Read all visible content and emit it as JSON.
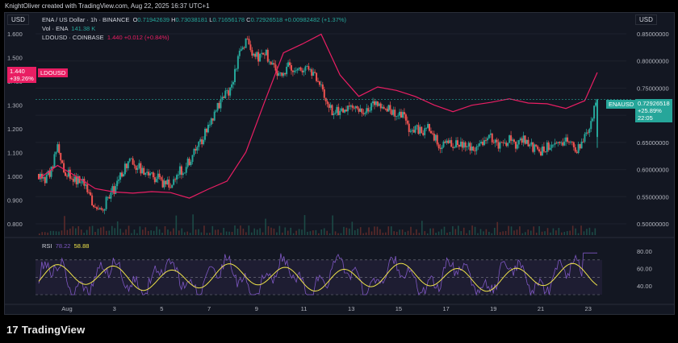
{
  "header": {
    "created_by": "KnightOliver created with TradingView.com, Aug 22, 2025 16:37 UTC+1"
  },
  "left_scale_label": "USD",
  "right_scale_label": "USD",
  "legend": {
    "main_title": "ENA / US Dollar · 1h · BINANCE",
    "ohlc": [
      {
        "k": "O",
        "v": "0.71942639"
      },
      {
        "k": "H",
        "v": "0.73038181"
      },
      {
        "k": "L",
        "v": "0.71656178"
      },
      {
        "k": "C",
        "v": "0.72926518"
      }
    ],
    "change": "+0.00982482 (+1.37%)",
    "vol_label": "Vol · ENA",
    "vol_value": "141.38 K",
    "compare_label": "LDOUSD · COINBASE",
    "compare_value": "1.440",
    "compare_change": "+0.012 (+0.84%)"
  },
  "badges": {
    "ldo_price": "1.440",
    "ldo_pct": "+39.26%",
    "ldo_name": "LDOUSD",
    "ena_name": "ENAUSD",
    "ena_price": "0.72926518",
    "ena_pct": "+25.89%",
    "ena_timer": "22:05"
  },
  "rsi": {
    "label": "RSI",
    "v1": "78.22",
    "v2": "58.88",
    "ticks": [
      "80.00",
      "60.00",
      "40.00"
    ]
  },
  "brand": "TradingView",
  "colors": {
    "bg": "#131722",
    "up": "#26a69a",
    "down": "#ef5350",
    "compare": "#e91e63",
    "rsi": "#7e57c2",
    "rsi_ma": "#f0e44a"
  },
  "chart_data": {
    "type": "line",
    "title": "ENA / US Dollar · 1h · BINANCE",
    "x_labels": [
      "Aug",
      "3",
      "5",
      "7",
      "9",
      "11",
      "13",
      "15",
      "17",
      "19",
      "21",
      "23"
    ],
    "left_axis": {
      "label": "USD",
      "ticks": [
        "1.600",
        "1.500",
        "1.400",
        "1.300",
        "1.200",
        "1.100",
        "1.000",
        "0.900",
        "0.800"
      ]
    },
    "right_axis": {
      "label": "USD",
      "ticks": [
        "0.85000000",
        "0.80000000",
        "0.75000000",
        "0.70000000",
        "0.65000000",
        "0.60000000",
        "0.55000000",
        "0.50000000"
      ],
      "ylim": [
        0.49,
        0.87
      ]
    },
    "series": [
      {
        "name": "ENAUSD",
        "axis": "right",
        "x": [
          0,
          1,
          2,
          3,
          4,
          5,
          6,
          7,
          8,
          9,
          10,
          11,
          12,
          13,
          14,
          15,
          16,
          17,
          18,
          19,
          20,
          21,
          22,
          23,
          24,
          25,
          26,
          27,
          28,
          29,
          30,
          31,
          32,
          33,
          34,
          35,
          36,
          37,
          38,
          39,
          40,
          41,
          42,
          43,
          44,
          45,
          46,
          47,
          48,
          49,
          50,
          51,
          52,
          53,
          54,
          55,
          56,
          57,
          58,
          59,
          60,
          61,
          62,
          63,
          64,
          65,
          66,
          67,
          68,
          69,
          70,
          71,
          72,
          73,
          74,
          75,
          76,
          77,
          78,
          79,
          80,
          81,
          82,
          83,
          84,
          85,
          86,
          87,
          88,
          89
        ],
        "close": [
          0.592,
          0.577,
          0.6,
          0.64,
          0.6,
          0.588,
          0.582,
          0.576,
          0.558,
          0.53,
          0.526,
          0.548,
          0.564,
          0.585,
          0.608,
          0.612,
          0.602,
          0.592,
          0.585,
          0.583,
          0.574,
          0.576,
          0.592,
          0.6,
          0.615,
          0.637,
          0.655,
          0.68,
          0.705,
          0.725,
          0.74,
          0.765,
          0.812,
          0.835,
          0.818,
          0.804,
          0.815,
          0.798,
          0.778,
          0.77,
          0.795,
          0.78,
          0.778,
          0.785,
          0.77,
          0.758,
          0.725,
          0.705,
          0.711,
          0.71,
          0.715,
          0.712,
          0.708,
          0.72,
          0.715,
          0.717,
          0.712,
          0.705,
          0.698,
          0.675,
          0.678,
          0.67,
          0.675,
          0.66,
          0.64,
          0.655,
          0.645,
          0.65,
          0.65,
          0.638,
          0.642,
          0.656,
          0.66,
          0.646,
          0.65,
          0.655,
          0.648,
          0.656,
          0.648,
          0.64,
          0.633,
          0.64,
          0.643,
          0.65,
          0.657,
          0.645,
          0.638,
          0.66,
          0.69,
          0.729
        ]
      },
      {
        "name": "LDOUSD",
        "axis": "left",
        "x": [
          0,
          3,
          6,
          9,
          12,
          15,
          18,
          21,
          24,
          27,
          30,
          33,
          36,
          39,
          42,
          45,
          48,
          51,
          54,
          57,
          60,
          63,
          66,
          69,
          72,
          75,
          78,
          81,
          84,
          87,
          89
        ],
        "values": [
          1.01,
          1.04,
          1.0,
          0.96,
          0.92,
          0.94,
          0.95,
          0.92,
          0.925,
          0.935,
          1.0,
          1.09,
          1.3,
          1.52,
          1.56,
          1.58,
          1.44,
          1.33,
          1.36,
          1.38,
          1.34,
          1.31,
          1.29,
          1.3,
          1.305,
          1.31,
          1.32,
          1.3,
          1.3,
          1.32,
          1.44
        ]
      }
    ],
    "volume_note": "Vol · ENA histogram along bottom",
    "rsi_range": [
      30,
      80
    ],
    "grid": true
  }
}
